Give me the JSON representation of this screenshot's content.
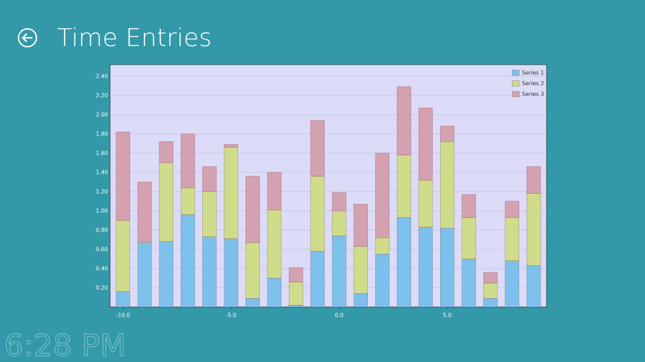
{
  "header": {
    "title": "Time Entries"
  },
  "clock": "6:28 PM",
  "chart_data": {
    "type": "stacked-bar",
    "x": [
      -10,
      -9,
      -8,
      -7,
      -6,
      -5,
      -4,
      -3,
      -2,
      -1,
      0,
      1,
      2,
      3,
      4,
      5,
      6,
      7,
      8,
      9
    ],
    "series": [
      {
        "name": "Series 1",
        "color": "#7ec0ec",
        "values": [
          0.16,
          0.67,
          0.68,
          0.96,
          0.73,
          0.71,
          0.09,
          0.3,
          0.02,
          0.58,
          0.74,
          0.14,
          0.55,
          0.93,
          0.83,
          0.82,
          0.5,
          0.09,
          0.48,
          0.43
        ]
      },
      {
        "name": "Series 2",
        "color": "#cfdc8a",
        "values": [
          0.74,
          0.01,
          0.82,
          0.28,
          0.47,
          0.95,
          0.58,
          0.71,
          0.24,
          0.78,
          0.26,
          0.49,
          0.17,
          0.65,
          0.49,
          0.9,
          0.43,
          0.16,
          0.45,
          0.75
        ]
      },
      {
        "name": "Series 3",
        "color": "#d4a1b0",
        "values": [
          0.92,
          0.62,
          0.22,
          0.56,
          0.26,
          0.03,
          0.69,
          0.39,
          0.15,
          0.58,
          0.19,
          0.44,
          0.88,
          0.71,
          0.75,
          0.16,
          0.24,
          0.11,
          0.17,
          0.28
        ]
      }
    ],
    "xlim": [
      -10.6,
      9.6
    ],
    "xticks": [
      {
        "value": -10,
        "label": "-10.0"
      },
      {
        "value": -5,
        "label": "-5.0"
      },
      {
        "value": 0,
        "label": "0.0"
      },
      {
        "value": 5,
        "label": "5.0"
      }
    ],
    "ylim": [
      0,
      2.52
    ],
    "yticks": [
      {
        "value": 0.2,
        "label": "0.20"
      },
      {
        "value": 0.4,
        "label": "0.40"
      },
      {
        "value": 0.6,
        "label": "0.60"
      },
      {
        "value": 0.8,
        "label": "0.80"
      },
      {
        "value": 1.0,
        "label": "1.00"
      },
      {
        "value": 1.2,
        "label": "1.20"
      },
      {
        "value": 1.4,
        "label": "1.40"
      },
      {
        "value": 1.6,
        "label": "1.60"
      },
      {
        "value": 1.8,
        "label": "1.80"
      },
      {
        "value": 2.0,
        "label": "2.00"
      },
      {
        "value": 2.2,
        "label": "2.20"
      },
      {
        "value": 2.4,
        "label": "2.40"
      }
    ],
    "grid": true,
    "legend": "top-right"
  }
}
